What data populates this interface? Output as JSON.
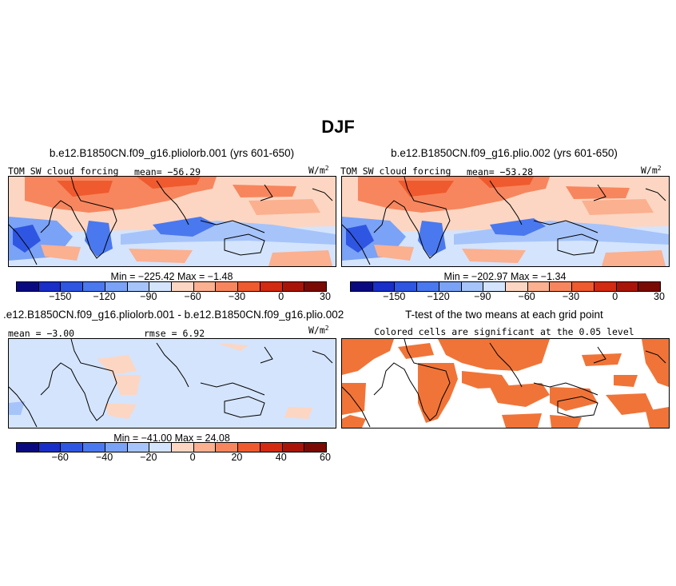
{
  "page_title": "DJF",
  "panels": {
    "p1": {
      "title": "b.e12.B1850CN.f09_g16.pliolorb.001 (yrs 601-650)",
      "left_label": "TOM SW cloud forcing",
      "center_label": "mean= −56.29",
      "units_base": "W/m",
      "units_exp": "2",
      "minmax": "Min = −225.42  Max =  −1.48"
    },
    "p2": {
      "title": "b.e12.B1850CN.f09_g16.plio.002 (yrs 601-650)",
      "left_label": "TOM SW cloud forcing",
      "center_label": "mean= −53.28",
      "units_base": "W/m",
      "units_exp": "2",
      "minmax": "Min = −202.97  Max =  −1.34"
    },
    "p3": {
      "title": ".e12.B1850CN.f09_g16.pliolorb.001 - b.e12.B1850CN.f09_g16.plio.002",
      "left_label": "mean =  −3.00",
      "center_label": "rmse =   6.92",
      "units_base": "W/m",
      "units_exp": "2",
      "minmax": "Min = −41.00 Max =  24.08"
    },
    "p4": {
      "title": "T-test of the two means at each grid point",
      "subtitle": "Colored cells are significant at the 0.05 level"
    }
  },
  "colorbars": {
    "main": {
      "colors": [
        "#0a0a80",
        "#1a2ec8",
        "#2f56e2",
        "#4a78ee",
        "#7aa2f6",
        "#a6c4fa",
        "#d4e4fc",
        "#fcd6c2",
        "#fbb090",
        "#f7865e",
        "#ef5a2e",
        "#d32a12",
        "#a81508",
        "#7a0a04"
      ],
      "ticks": [
        "−150",
        "−120",
        "−90",
        "−60",
        "−30",
        "0",
        "30"
      ]
    },
    "diff": {
      "colors": [
        "#0a0a80",
        "#1a2ec8",
        "#2f56e2",
        "#4a78ee",
        "#7aa2f6",
        "#a6c4fa",
        "#d4e4fc",
        "#fcd6c2",
        "#fbb090",
        "#f7865e",
        "#ef5a2e",
        "#d32a12",
        "#a81508",
        "#7a0a04"
      ],
      "ticks": [
        "−60",
        "−40",
        "−20",
        "0",
        "20",
        "40",
        "60"
      ]
    }
  },
  "map_colors": {
    "land_line": "#000000",
    "strong_negative": "#2f56e2",
    "moderate_negative": "#7aa2f6",
    "weak_negative": "#d4e4fc",
    "weak_positive": "#fcd6c2",
    "moderate_positive": "#f7865e",
    "significant": "#f07438"
  }
}
